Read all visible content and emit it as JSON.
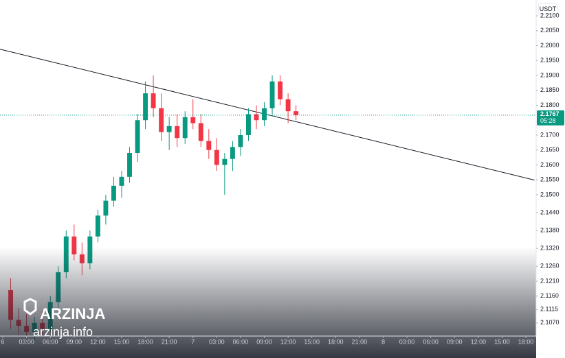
{
  "chart_data": {
    "type": "candlestick",
    "currency": "USDT",
    "xlim": [
      -0.35,
      67.3
    ],
    "ylim": [
      2.1026,
      2.2153
    ],
    "xticks": [
      {
        "value": 0,
        "label": "6"
      },
      {
        "value": 3,
        "label": "03:00"
      },
      {
        "value": 6,
        "label": "06:00"
      },
      {
        "value": 9,
        "label": "09:00"
      },
      {
        "value": 12,
        "label": "12:00"
      },
      {
        "value": 15,
        "label": "15:00"
      },
      {
        "value": 18,
        "label": "18:00"
      },
      {
        "value": 21,
        "label": "21:00"
      },
      {
        "value": 24,
        "label": "7"
      },
      {
        "value": 27,
        "label": "03:00"
      },
      {
        "value": 30,
        "label": "06:00"
      },
      {
        "value": 33,
        "label": "09:00"
      },
      {
        "value": 36,
        "label": "12:00"
      },
      {
        "value": 39,
        "label": "15:00"
      },
      {
        "value": 42,
        "label": "18:00"
      },
      {
        "value": 45,
        "label": "21:00"
      },
      {
        "value": 48,
        "label": "8"
      },
      {
        "value": 51,
        "label": "03:00"
      },
      {
        "value": 54,
        "label": "06:00"
      },
      {
        "value": 57,
        "label": "09:00"
      },
      {
        "value": 60,
        "label": "12:00"
      },
      {
        "value": 63,
        "label": "15:00"
      },
      {
        "value": 66,
        "label": "18:00"
      }
    ],
    "yticks": [
      {
        "value": 2.21,
        "label": "2.2100"
      },
      {
        "value": 2.205,
        "label": "2.2050"
      },
      {
        "value": 2.2,
        "label": "2.2000"
      },
      {
        "value": 2.195,
        "label": "2.1950"
      },
      {
        "value": 2.19,
        "label": "2.1900"
      },
      {
        "value": 2.185,
        "label": "2.1850"
      },
      {
        "value": 2.18,
        "label": "2.1800"
      },
      {
        "value": 2.17,
        "label": "2.1700"
      },
      {
        "value": 2.165,
        "label": "2.1650"
      },
      {
        "value": 2.16,
        "label": "2.1600"
      },
      {
        "value": 2.155,
        "label": "2.1550"
      },
      {
        "value": 2.15,
        "label": "2.1500"
      },
      {
        "value": 2.144,
        "label": "2.1440"
      },
      {
        "value": 2.138,
        "label": "2.1380"
      },
      {
        "value": 2.132,
        "label": "2.1320"
      },
      {
        "value": 2.126,
        "label": "2.1260"
      },
      {
        "value": 2.121,
        "label": "2.1210"
      },
      {
        "value": 2.116,
        "label": "2.1160"
      },
      {
        "value": 2.1115,
        "label": "2.1115"
      },
      {
        "value": 2.107,
        "label": "2.1070"
      }
    ],
    "up_color": "#089981",
    "down_color": "#f23645",
    "x": [
      1,
      2,
      3,
      4,
      5,
      6,
      7,
      8,
      9,
      10,
      11,
      12,
      13,
      14,
      15,
      16,
      17,
      18,
      19,
      20,
      21,
      22,
      23,
      24,
      25,
      26,
      27,
      28,
      29,
      30,
      31,
      32,
      33,
      34,
      35,
      36,
      37
    ],
    "open": [
      2.118,
      2.108,
      2.106,
      2.104,
      2.107,
      2.105,
      2.114,
      2.124,
      2.136,
      2.13,
      2.127,
      2.136,
      2.143,
      2.148,
      2.153,
      2.156,
      2.164,
      2.175,
      2.184,
      2.179,
      2.171,
      2.173,
      2.169,
      2.176,
      2.174,
      2.168,
      2.165,
      2.16,
      2.162,
      2.166,
      2.17,
      2.177,
      2.175,
      2.179,
      2.188,
      2.182,
      2.178
    ],
    "high": [
      2.122,
      2.112,
      2.11,
      2.109,
      2.111,
      2.116,
      2.126,
      2.138,
      2.14,
      2.134,
      2.138,
      2.145,
      2.15,
      2.156,
      2.158,
      2.166,
      2.177,
      2.188,
      2.19,
      2.184,
      2.176,
      2.177,
      2.178,
      2.182,
      2.177,
      2.172,
      2.169,
      2.164,
      2.168,
      2.172,
      2.179,
      2.18,
      2.181,
      2.19,
      2.19,
      2.184,
      2.18
    ],
    "low": [
      2.105,
      2.103,
      2.102,
      2.101,
      2.103,
      2.104,
      2.112,
      2.122,
      2.128,
      2.123,
      2.125,
      2.134,
      2.14,
      2.146,
      2.149,
      2.154,
      2.161,
      2.172,
      2.176,
      2.168,
      2.165,
      2.166,
      2.167,
      2.172,
      2.166,
      2.162,
      2.158,
      2.15,
      2.158,
      2.163,
      2.168,
      2.172,
      2.173,
      2.177,
      2.18,
      2.174,
      2.175
    ],
    "close": [
      2.108,
      2.106,
      2.104,
      2.107,
      2.105,
      2.114,
      2.124,
      2.136,
      2.13,
      2.127,
      2.136,
      2.143,
      2.148,
      2.153,
      2.156,
      2.164,
      2.175,
      2.184,
      2.179,
      2.171,
      2.173,
      2.169,
      2.176,
      2.174,
      2.168,
      2.165,
      2.16,
      2.162,
      2.166,
      2.17,
      2.177,
      2.175,
      2.179,
      2.188,
      2.182,
      2.178,
      2.1767
    ],
    "last_price": 2.1767,
    "last_price_color": "#089981",
    "countdown": "05:28",
    "trendline": {
      "x": [
        -0.35,
        67.1
      ],
      "y": [
        2.1988,
        2.1549
      ],
      "color": "#131722"
    },
    "watermark": {
      "brand": "ARZINJA",
      "site": "arzinja.info"
    }
  }
}
